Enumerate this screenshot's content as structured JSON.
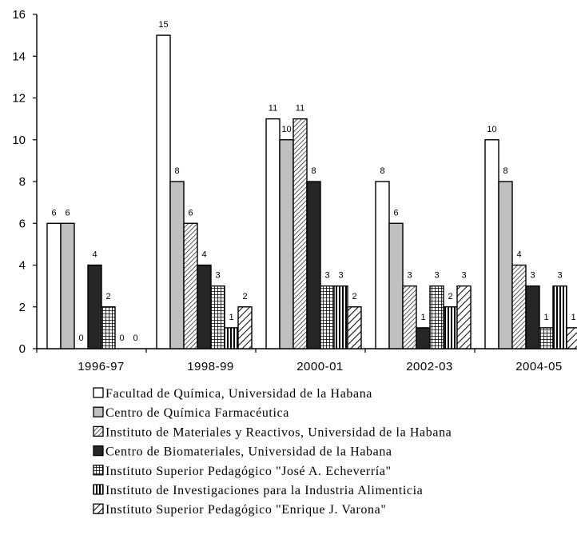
{
  "chart_data": {
    "type": "bar",
    "categories": [
      "1996-97",
      "1998-99",
      "2000-01",
      "2002-03",
      "2004-05"
    ],
    "ylim": [
      0,
      16
    ],
    "yticks": [
      "0",
      "2",
      "4",
      "6",
      "8",
      "10",
      "12",
      "14",
      "16"
    ],
    "series": [
      {
        "name": "Facultad de Química, Universidad de la Habana",
        "values": [
          6,
          15,
          11,
          8,
          10
        ],
        "labels": [
          "6",
          "15",
          "11",
          "8",
          "10"
        ],
        "fill": "#ffffff",
        "pattern": "solid"
      },
      {
        "name": "Centro de Química Farmacéutica",
        "values": [
          6,
          8,
          10,
          6,
          8
        ],
        "labels": [
          "6",
          "8",
          "10",
          "6",
          "8"
        ],
        "fill": "#c0c0c0",
        "pattern": "solid"
      },
      {
        "name": "Instituto de Materiales y Reactivos, Universidad de la Habana",
        "values": [
          0,
          6,
          11,
          3,
          4
        ],
        "labels": [
          "0",
          "6",
          "11",
          "3",
          "4"
        ],
        "fill": "#ffffff",
        "pattern": "diag-fine"
      },
      {
        "name": "Centro de Biomateriales, Universidad de la Habana",
        "values": [
          4,
          4,
          8,
          1,
          3
        ],
        "labels": [
          "4",
          "4",
          "8",
          "1",
          "3"
        ],
        "fill": "#262626",
        "pattern": "solid"
      },
      {
        "name": "Instituto Superior Pedagógico \"José A. Echeverría\"",
        "values": [
          2,
          3,
          3,
          3,
          1
        ],
        "labels": [
          "2",
          "3",
          "3",
          "3",
          "1"
        ],
        "fill": "#ffffff",
        "pattern": "grid"
      },
      {
        "name": "Instituto de Investigaciones para la Industria Alimenticia",
        "values": [
          0,
          1,
          3,
          2,
          3
        ],
        "labels": [
          "0",
          "1",
          "3",
          "2",
          "3"
        ],
        "fill": "#ffffff",
        "pattern": "vertical"
      },
      {
        "name": "Instituto Superior Pedagógico \"Enrique J. Varona\"",
        "values": [
          0,
          2,
          2,
          3,
          1
        ],
        "labels": [
          "0",
          "2",
          "2",
          "3",
          "1"
        ],
        "fill": "#ffffff",
        "pattern": "diag-wide"
      }
    ],
    "grid": false,
    "legend_position": "bottom"
  }
}
